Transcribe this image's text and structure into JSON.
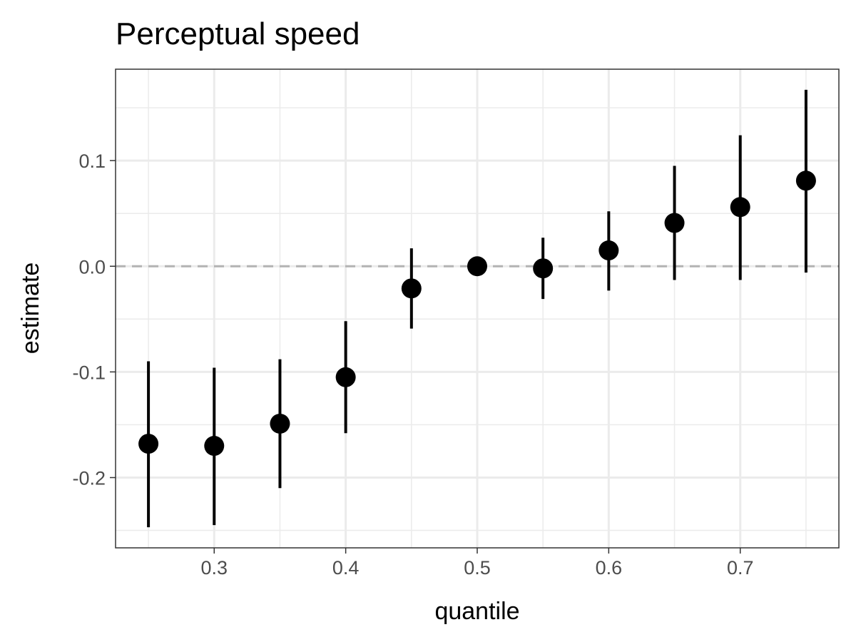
{
  "chart_data": {
    "type": "scatter",
    "title": "Perceptual speed",
    "xlabel": "quantile",
    "ylabel": "estimate",
    "xlim": [
      0.225,
      0.775
    ],
    "ylim": [
      -0.2665,
      0.1865
    ],
    "x_ticks": [
      0.3,
      0.4,
      0.5,
      0.6,
      0.7
    ],
    "x_tick_labels": [
      "0.3",
      "0.4",
      "0.5",
      "0.6",
      "0.7"
    ],
    "y_ticks": [
      0.1,
      0.0,
      -0.1,
      -0.2
    ],
    "y_tick_labels": [
      "0.1",
      "0.0",
      "-0.1",
      "-0.2"
    ],
    "grid": true,
    "reference_line": {
      "y": 0,
      "style": "dashed",
      "color": "#b3b3b3"
    },
    "point_color": "#000000",
    "series": [
      {
        "points": [
          {
            "x": 0.25,
            "y": -0.168,
            "lower": -0.247,
            "upper": -0.09
          },
          {
            "x": 0.3,
            "y": -0.17,
            "lower": -0.245,
            "upper": -0.096
          },
          {
            "x": 0.35,
            "y": -0.149,
            "lower": -0.21,
            "upper": -0.088
          },
          {
            "x": 0.4,
            "y": -0.105,
            "lower": -0.158,
            "upper": -0.052
          },
          {
            "x": 0.45,
            "y": -0.021,
            "lower": -0.059,
            "upper": 0.017
          },
          {
            "x": 0.5,
            "y": 0.0,
            "lower": 0.0,
            "upper": 0.0
          },
          {
            "x": 0.55,
            "y": -0.002,
            "lower": -0.031,
            "upper": 0.027
          },
          {
            "x": 0.6,
            "y": 0.015,
            "lower": -0.023,
            "upper": 0.052
          },
          {
            "x": 0.65,
            "y": 0.041,
            "lower": -0.013,
            "upper": 0.095
          },
          {
            "x": 0.7,
            "y": 0.056,
            "lower": -0.013,
            "upper": 0.124
          },
          {
            "x": 0.75,
            "y": 0.081,
            "lower": -0.006,
            "upper": 0.167
          }
        ]
      }
    ]
  }
}
